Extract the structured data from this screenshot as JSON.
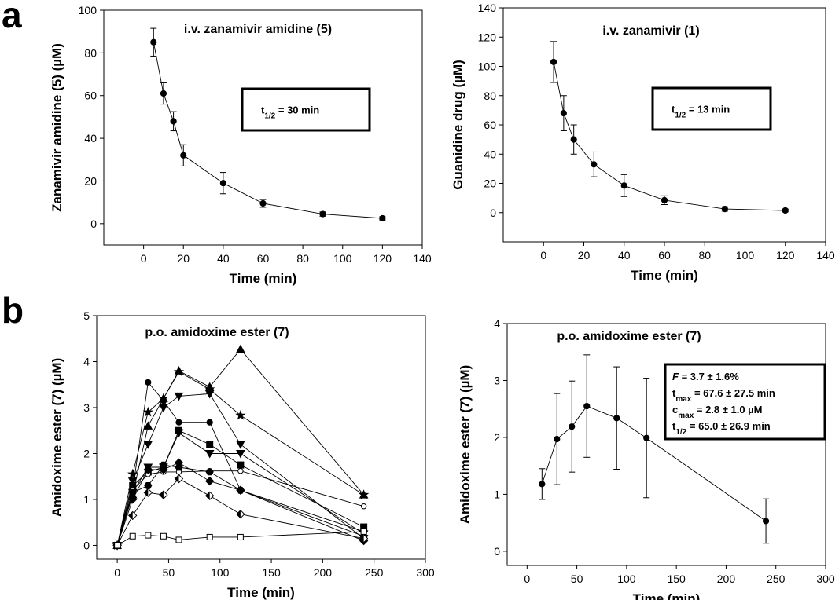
{
  "panels": {
    "a": "a",
    "b": "b"
  },
  "chart_data": [
    {
      "id": "a-left",
      "type": "line",
      "title": "i.v. zanamivir amidine (5)",
      "xlabel": "Time (min)",
      "ylabel": "Zanamivir amidine (5) (µM)",
      "xlim": [
        -20,
        140
      ],
      "ylim": [
        -10,
        100
      ],
      "xticks": [
        0,
        20,
        40,
        60,
        80,
        100,
        120,
        140
      ],
      "yticks": [
        0,
        20,
        40,
        60,
        80,
        100
      ],
      "annotation": {
        "main": "t",
        "sub": "1/2",
        "rest": " = 30 min"
      },
      "series": [
        {
          "marker": "circle",
          "x": [
            5,
            10,
            15,
            20,
            40,
            60,
            90,
            120
          ],
          "y": [
            85,
            61,
            48,
            32,
            19,
            9.5,
            4.5,
            2.5
          ],
          "err": [
            6.5,
            5,
            4.5,
            5,
            5,
            1.8,
            1,
            0.8
          ]
        }
      ]
    },
    {
      "id": "a-right",
      "type": "line",
      "title": "i.v. zanamivir (1)",
      "xlabel": "Time (min)",
      "ylabel": "Guanidine drug (µM)",
      "xlim": [
        -20,
        140
      ],
      "ylim": [
        -20,
        140
      ],
      "xticks": [
        0,
        20,
        40,
        60,
        80,
        100,
        120,
        140
      ],
      "yticks": [
        0,
        20,
        40,
        60,
        80,
        100,
        120,
        140
      ],
      "annotation": {
        "main": "t",
        "sub": "1/2",
        "rest": " = 13 min"
      },
      "series": [
        {
          "marker": "circle",
          "x": [
            5,
            10,
            15,
            25,
            40,
            60,
            90,
            120
          ],
          "y": [
            103,
            68,
            50,
            33,
            18.5,
            8.5,
            2.5,
            1.5
          ],
          "err": [
            14,
            12,
            10,
            8.5,
            7.5,
            3,
            1.5,
            1
          ]
        }
      ]
    },
    {
      "id": "b-left",
      "type": "line",
      "title": "p.o. amidoxime ester (7)",
      "xlabel": "Time (min)",
      "ylabel": "Amidoxime ester (7) (µM)",
      "xlim": [
        -20,
        300
      ],
      "ylim": [
        -0.3,
        5
      ],
      "xticks": [
        0,
        50,
        100,
        150,
        200,
        250,
        300
      ],
      "yticks": [
        0,
        1,
        2,
        3,
        4,
        5
      ],
      "x": [
        0,
        15,
        30,
        45,
        60,
        90,
        120,
        240
      ],
      "series": [
        {
          "marker": "triangle-up",
          "y": [
            0,
            1.1,
            2.6,
            3.2,
            3.8,
            3.45,
            4.27,
            1.1
          ]
        },
        {
          "marker": "star",
          "y": [
            0,
            1.55,
            2.9,
            3.2,
            3.78,
            3.4,
            2.83,
            1.1
          ]
        },
        {
          "marker": "triangle-down",
          "y": [
            0,
            1.4,
            2.2,
            3.0,
            3.25,
            3.3,
            2.2,
            0.15
          ]
        },
        {
          "marker": "circle",
          "y": [
            0,
            1.2,
            3.55,
            3.15,
            2.68,
            2.68,
            1.2,
            0.3
          ]
        },
        {
          "marker": "square",
          "y": [
            0,
            1.3,
            1.6,
            1.7,
            2.5,
            2.2,
            1.75,
            0.4
          ]
        },
        {
          "marker": "triangle-down",
          "y": [
            0,
            1.15,
            1.7,
            1.7,
            2.45,
            2.0,
            2.0,
            0.25
          ]
        },
        {
          "marker": "circle-open",
          "y": [
            0,
            1.2,
            1.55,
            1.6,
            1.6,
            1.62,
            1.62,
            0.85
          ]
        },
        {
          "marker": "diamond",
          "y": [
            0,
            1.0,
            1.65,
            1.65,
            1.8,
            1.4,
            1.2,
            0.1
          ]
        },
        {
          "marker": "hexagon",
          "y": [
            0,
            1.15,
            1.3,
            1.75,
            1.7,
            1.6,
            1.2,
            0.2
          ]
        },
        {
          "marker": "diamond-half",
          "y": [
            0,
            0.65,
            1.15,
            1.1,
            1.45,
            1.08,
            0.68,
            0.15
          ]
        },
        {
          "marker": "square-open",
          "y": [
            0,
            0.2,
            0.22,
            0.2,
            0.12,
            0.18,
            0.18,
            0.3
          ]
        }
      ]
    },
    {
      "id": "b-right",
      "type": "line",
      "title": "p.o. amidoxime ester (7)",
      "xlabel": "Time (min)",
      "ylabel": "Amidoxime ester (7) (µM)",
      "xlim": [
        -20,
        300
      ],
      "ylim": [
        -0.25,
        4
      ],
      "xticks": [
        0,
        50,
        100,
        150,
        200,
        250,
        300
      ],
      "yticks": [
        0,
        1,
        2,
        3,
        4
      ],
      "stats": [
        {
          "main": "F",
          "italic": true,
          "sub": "",
          "rest": " = 3.7 ± 1.6%"
        },
        {
          "main": "t",
          "italic": false,
          "sub": "max",
          "rest": " = 67.6 ± 27.5 min"
        },
        {
          "main": "c",
          "italic": false,
          "sub": "max",
          "rest": " = 2.8 ± 1.0 µM"
        },
        {
          "main": "t",
          "italic": false,
          "sub": "1/2",
          "rest": " = 65.0 ± 26.9 min"
        }
      ],
      "series": [
        {
          "marker": "circle",
          "x": [
            15,
            30,
            45,
            60,
            90,
            120,
            240
          ],
          "y": [
            1.18,
            1.97,
            2.19,
            2.55,
            2.34,
            1.99,
            0.53
          ],
          "err": [
            0.27,
            0.8,
            0.8,
            0.9,
            0.9,
            1.05,
            0.39
          ]
        }
      ]
    }
  ]
}
